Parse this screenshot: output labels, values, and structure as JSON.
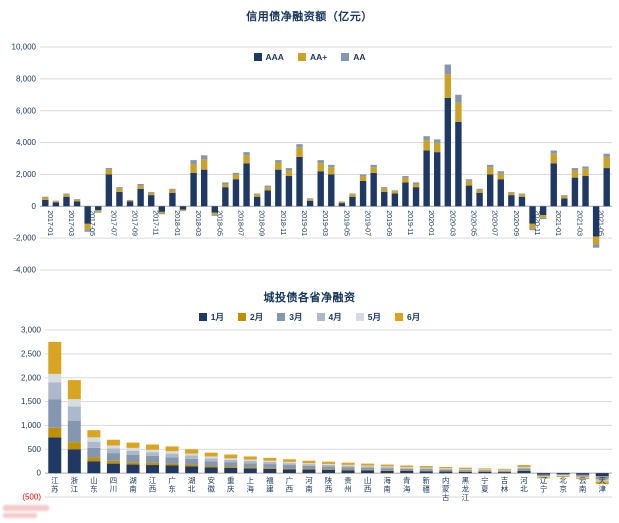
{
  "chart_data": [
    {
      "type": "bar",
      "stacked": true,
      "title": "信用债净融资额（亿元）",
      "ylim": [
        -4000,
        10000
      ],
      "ytick_step": 2000,
      "ytick_labels": [
        "10,000",
        "8,000",
        "6,000",
        "4,000",
        "2,000",
        "0",
        "-2,000",
        "-4,000"
      ],
      "x_label_every": 2,
      "negative_format": "minus",
      "legend_position": "top",
      "grid": true,
      "categories": [
        "2017-01",
        "2017-02",
        "2017-03",
        "2017-04",
        "2017-05",
        "2017-06",
        "2017-07",
        "2017-08",
        "2017-09",
        "2017-10",
        "2017-11",
        "2017-12",
        "2018-01",
        "2018-02",
        "2018-03",
        "2018-04",
        "2018-05",
        "2018-06",
        "2018-07",
        "2018-08",
        "2018-09",
        "2018-10",
        "2018-11",
        "2018-12",
        "2019-01",
        "2019-02",
        "2019-03",
        "2019-04",
        "2019-05",
        "2019-06",
        "2019-07",
        "2019-08",
        "2019-09",
        "2019-10",
        "2019-11",
        "2019-12",
        "2020-01",
        "2020-02",
        "2020-03",
        "2020-04",
        "2020-05",
        "2020-06",
        "2020-07",
        "2020-08",
        "2020-09",
        "2020-10",
        "2020-11",
        "2020-12",
        "2021-01",
        "2021-02",
        "2021-03",
        "2021-04",
        "2021-05",
        "2021-06"
      ],
      "series": [
        {
          "name": "AAA",
          "color": "#1F3864",
          "values": [
            400,
            250,
            600,
            300,
            -1100,
            -250,
            2000,
            900,
            300,
            1100,
            700,
            -350,
            850,
            -200,
            2100,
            2300,
            -400,
            1200,
            1700,
            2700,
            600,
            1000,
            2300,
            1900,
            3100,
            350,
            2200,
            2000,
            200,
            600,
            1600,
            2100,
            900,
            800,
            1500,
            1200,
            3500,
            3400,
            6800,
            5300,
            1300,
            850,
            2000,
            1700,
            700,
            600,
            -1100,
            -550,
            2700,
            500,
            1800,
            1900,
            -1900,
            2400
          ]
        },
        {
          "name": "AA+",
          "color": "#C9A227",
          "values": [
            150,
            70,
            150,
            100,
            -350,
            -100,
            300,
            200,
            80,
            200,
            150,
            -100,
            180,
            -70,
            550,
            650,
            -140,
            200,
            300,
            500,
            150,
            200,
            450,
            350,
            600,
            100,
            500,
            450,
            70,
            150,
            300,
            350,
            200,
            150,
            300,
            200,
            650,
            600,
            1500,
            1200,
            300,
            180,
            450,
            350,
            150,
            150,
            -300,
            -180,
            600,
            150,
            450,
            450,
            -500,
            700
          ]
        },
        {
          "name": "AA",
          "color": "#8496B0",
          "values": [
            50,
            30,
            50,
            50,
            -150,
            -50,
            100,
            100,
            20,
            100,
            50,
            -50,
            70,
            -30,
            250,
            250,
            -60,
            100,
            100,
            200,
            50,
            100,
            150,
            150,
            200,
            50,
            200,
            150,
            30,
            50,
            100,
            150,
            100,
            50,
            100,
            100,
            250,
            200,
            600,
            500,
            100,
            70,
            150,
            150,
            50,
            50,
            -100,
            -70,
            200,
            50,
            150,
            150,
            -200,
            200
          ]
        }
      ]
    },
    {
      "type": "bar",
      "stacked": true,
      "title": "城投债各省净融资",
      "ylim": [
        -500,
        3000
      ],
      "ytick_step": 500,
      "ytick_labels": [
        "3,000",
        "2,500",
        "2,000",
        "1,500",
        "1,000",
        "500",
        "0",
        "(500)"
      ],
      "x_label_every": 1,
      "negative_format": "paren-red",
      "legend_position": "top",
      "grid": true,
      "categories": [
        "江苏",
        "浙江",
        "山东",
        "四川",
        "湖南",
        "江西",
        "广东",
        "湖北",
        "安徽",
        "重庆",
        "上海",
        "福建",
        "广西",
        "河南",
        "陕西",
        "贵州",
        "山西",
        "海南",
        "青海",
        "新疆",
        "内蒙古",
        "黑龙江",
        "宁夏",
        "吉林",
        "河北",
        "辽宁",
        "北京",
        "云南",
        "天津"
      ],
      "series": [
        {
          "name": "1月",
          "color": "#1F3864",
          "values": [
            750,
            500,
            250,
            200,
            180,
            170,
            160,
            140,
            120,
            110,
            100,
            90,
            80,
            75,
            70,
            60,
            55,
            50,
            45,
            40,
            35,
            30,
            28,
            25,
            45,
            -30,
            -20,
            -35,
            -60
          ]
        },
        {
          "name": "2月",
          "color": "#BF9000",
          "values": [
            200,
            150,
            80,
            60,
            50,
            50,
            40,
            40,
            30,
            30,
            25,
            25,
            20,
            20,
            18,
            15,
            15,
            12,
            10,
            10,
            8,
            8,
            7,
            6,
            12,
            -8,
            -5,
            -8,
            -15
          ]
        },
        {
          "name": "3月",
          "color": "#8496B0",
          "values": [
            600,
            450,
            200,
            160,
            150,
            140,
            130,
            120,
            100,
            90,
            80,
            75,
            70,
            60,
            55,
            50,
            45,
            40,
            35,
            35,
            30,
            25,
            22,
            20,
            38,
            -25,
            -18,
            -28,
            -50
          ]
        },
        {
          "name": "4月",
          "color": "#ADB9CA",
          "values": [
            350,
            300,
            130,
            100,
            90,
            80,
            80,
            70,
            60,
            50,
            50,
            45,
            40,
            35,
            32,
            30,
            28,
            25,
            22,
            20,
            18,
            15,
            13,
            12,
            22,
            -15,
            -10,
            -18,
            -30
          ]
        },
        {
          "name": "5月",
          "color": "#D6DCE4",
          "values": [
            180,
            150,
            90,
            60,
            60,
            50,
            50,
            40,
            40,
            30,
            30,
            25,
            25,
            20,
            18,
            18,
            15,
            15,
            13,
            12,
            10,
            10,
            8,
            7,
            13,
            -10,
            -7,
            -10,
            -18
          ]
        },
        {
          "name": "6月",
          "color": "#D9A521",
          "values": [
            670,
            400,
            150,
            120,
            110,
            110,
            100,
            90,
            80,
            80,
            65,
            60,
            55,
            50,
            47,
            47,
            42,
            38,
            35,
            33,
            29,
            27,
            22,
            20,
            40,
            -22,
            -20,
            -26,
            -57
          ]
        }
      ]
    }
  ],
  "colors": {
    "title": "#17375E",
    "axis_text": "#17375E",
    "negative_red": "#FF0000",
    "gridline": "#D9D9D9",
    "zero_line": "#A6A6A6"
  }
}
